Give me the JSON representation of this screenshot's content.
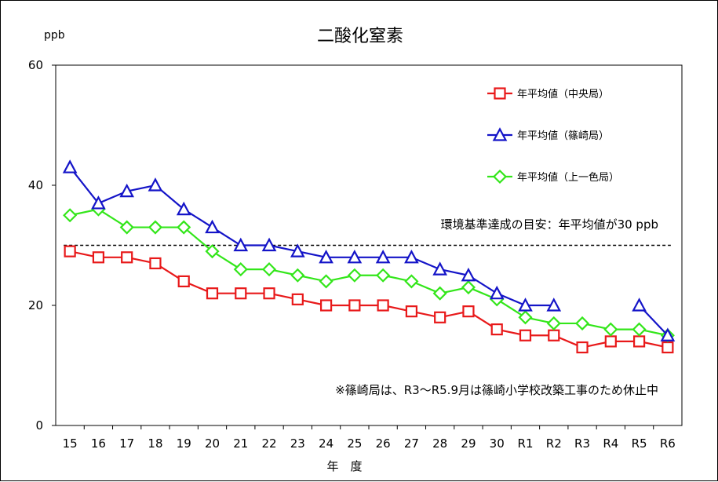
{
  "chart_data": {
    "type": "line",
    "title": "二酸化窒素",
    "ylabel": "ppb",
    "xlabel": "年　度",
    "ylim": [
      0,
      60
    ],
    "yticks": [
      0,
      20,
      40,
      60
    ],
    "categories": [
      "15",
      "16",
      "17",
      "18",
      "19",
      "20",
      "21",
      "22",
      "23",
      "24",
      "25",
      "26",
      "27",
      "28",
      "29",
      "30",
      "R1",
      "R2",
      "R3",
      "R4",
      "R5",
      "R6"
    ],
    "series": [
      {
        "name": "年平均値（中央局）",
        "color": "#e8191a",
        "marker": "square",
        "values": [
          29,
          28,
          28,
          27,
          24,
          22,
          22,
          22,
          21,
          20,
          20,
          20,
          19,
          18,
          19,
          16,
          15,
          15,
          13,
          14,
          14,
          13
        ]
      },
      {
        "name": "年平均値（篠崎局）",
        "color": "#1414c8",
        "marker": "triangle",
        "values": [
          43,
          37,
          39,
          40,
          36,
          33,
          30,
          30,
          29,
          28,
          28,
          28,
          28,
          26,
          25,
          22,
          20,
          20,
          null,
          null,
          20,
          15
        ]
      },
      {
        "name": "年平均値（上一色局）",
        "color": "#33e61a",
        "marker": "diamond",
        "values": [
          35,
          36,
          33,
          33,
          33,
          29,
          26,
          26,
          25,
          24,
          25,
          25,
          24,
          22,
          23,
          21,
          18,
          17,
          17,
          16,
          16,
          15
        ]
      }
    ],
    "reference_line": {
      "value": 30,
      "label": "環境基準達成の目安：年平均値が30 ppb"
    },
    "note": "※篠崎局は、R3～R5.9月は篠崎小学校改築工事のため休止中",
    "grid": false,
    "legend_position": "top-right"
  }
}
